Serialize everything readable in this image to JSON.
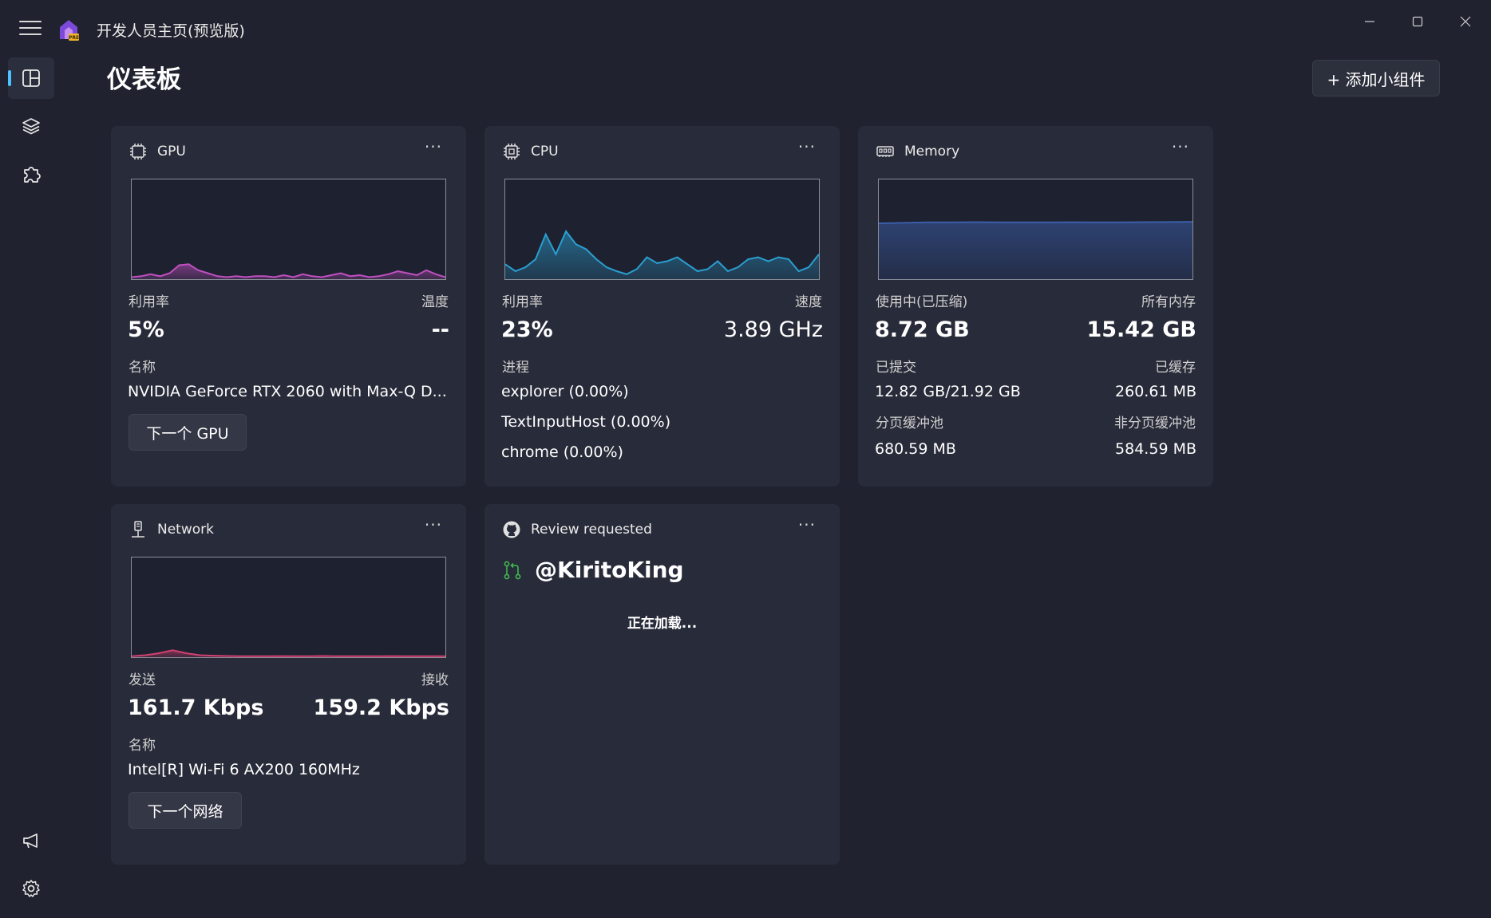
{
  "app": {
    "title": "开发人员主页(预览版)",
    "window_controls": [
      "minimize-icon",
      "maximize-icon",
      "close-icon"
    ]
  },
  "sidebar": {
    "items": [
      {
        "name": "dashboard",
        "icon": "dashboard-icon",
        "active": true
      },
      {
        "name": "layers",
        "icon": "layers-icon",
        "active": false
      },
      {
        "name": "extensions",
        "icon": "puzzle-icon",
        "active": false
      }
    ],
    "bottom_items": [
      {
        "name": "feedback",
        "icon": "megaphone-icon"
      },
      {
        "name": "settings",
        "icon": "gear-icon"
      }
    ]
  },
  "header": {
    "title": "仪表板",
    "add_widget_label": "+ 添加小组件"
  },
  "widgets": {
    "gpu": {
      "title": "GPU",
      "icon": "chip-icon",
      "more": "···",
      "label_left": "利用率",
      "label_right": "温度",
      "value_left": "5%",
      "value_right": "--",
      "name_label": "名称",
      "name_value": "NVIDIA GeForce RTX 2060 with Max-Q D...",
      "button_label": "下一个 GPU",
      "color": "#c050c0",
      "chart_data": {
        "type": "area",
        "y": [
          2,
          3,
          5,
          3,
          6,
          14,
          15,
          9,
          6,
          3,
          2,
          3,
          2,
          3,
          3,
          2,
          4,
          2,
          5,
          3,
          2,
          4,
          6,
          3,
          4,
          2,
          3,
          5,
          8,
          6,
          4,
          9,
          5,
          2
        ],
        "ylim": [
          0,
          100
        ]
      }
    },
    "cpu": {
      "title": "CPU",
      "icon": "chip-icon",
      "more": "···",
      "label_left": "利用率",
      "label_right": "速度",
      "value_left": "23%",
      "value_right": "3.89 GHz",
      "process_label": "进程",
      "processes": [
        "explorer (0.00%)",
        "TextInputHost (0.00%)",
        "chrome (0.00%)"
      ],
      "color": "#2a9fd0",
      "chart_data": {
        "type": "area",
        "y": [
          15,
          8,
          12,
          20,
          45,
          25,
          48,
          35,
          30,
          20,
          12,
          8,
          5,
          10,
          22,
          16,
          18,
          22,
          15,
          8,
          10,
          18,
          8,
          12,
          20,
          22,
          18,
          22,
          20,
          8,
          12,
          25
        ],
        "ylim": [
          0,
          100
        ]
      }
    },
    "memory": {
      "title": "Memory",
      "icon": "memory-icon",
      "more": "···",
      "label_left": "使用中(已压缩)",
      "label_right": "所有内存",
      "value_left": "8.72 GB",
      "value_right": "15.42 GB",
      "committed_label": "已提交",
      "committed_value": "12.82 GB/21.92 GB",
      "cached_label": "已缓存",
      "cached_value": "260.61 MB",
      "paged_label": "分页缓冲池",
      "paged_value": "680.59 MB",
      "nonpaged_label": "非分页缓冲池",
      "nonpaged_value": "584.59 MB",
      "color": "#3a5ea8",
      "chart_data": {
        "type": "area",
        "y": [
          56,
          56.5,
          57,
          57,
          57.2,
          57,
          57,
          57,
          57.1,
          57,
          57,
          57.2,
          57.3,
          57.5
        ],
        "ylim": [
          0,
          100
        ]
      }
    },
    "network": {
      "title": "Network",
      "icon": "network-icon",
      "more": "···",
      "label_left": "发送",
      "label_right": "接收",
      "value_left": "161.7 Kbps",
      "value_right": "159.2 Kbps",
      "name_label": "名称",
      "name_value": "Intel[R] Wi-Fi 6 AX200 160MHz",
      "button_label": "下一个网络",
      "color": "#d04070",
      "chart_data": {
        "type": "area",
        "y": [
          1,
          2,
          4,
          7,
          4,
          2,
          1.5,
          1.2,
          1,
          1,
          1,
          1.1,
          1,
          1,
          1.2,
          1,
          1,
          1,
          1,
          1.1,
          1,
          1,
          1,
          1
        ],
        "ylim": [
          0,
          100
        ]
      }
    },
    "github": {
      "title": "Review requested",
      "icon": "github-icon",
      "more": "···",
      "user_icon": "pull-request-icon",
      "user": "@KiritoKing",
      "loading": "正在加载..."
    }
  }
}
